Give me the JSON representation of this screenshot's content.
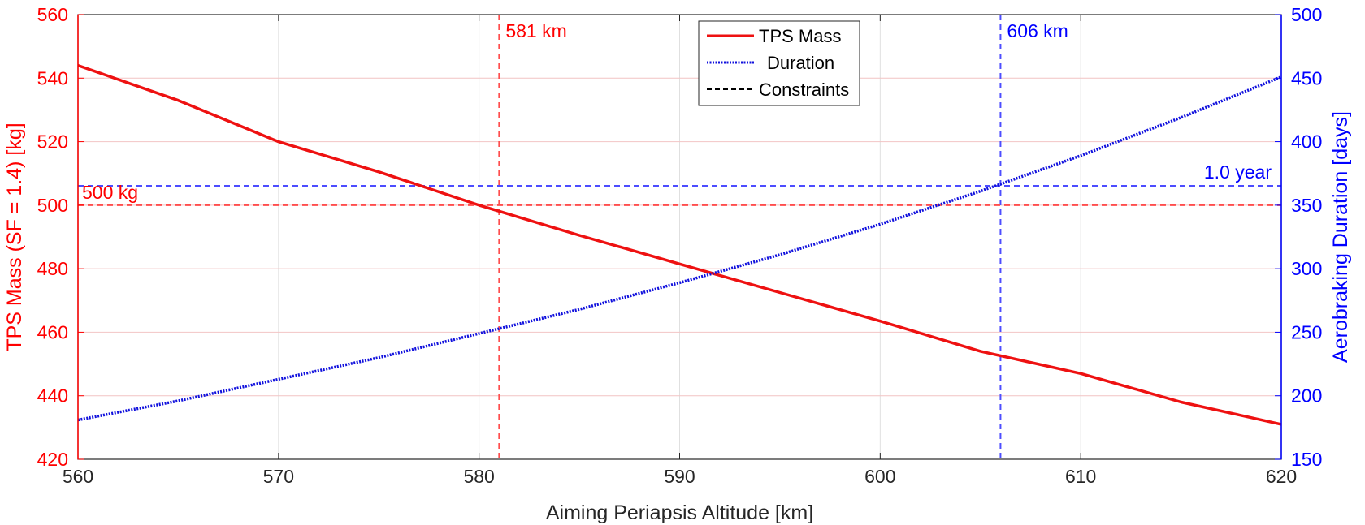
{
  "colors": {
    "left_axis": "#ff0000",
    "right_axis": "#0000ff",
    "tps_line": "#ee1111",
    "duration_line": "#1111dd",
    "constraint_left": "#ff4d4d",
    "constraint_right": "#4d4dff",
    "grid": "#e0e0e0",
    "axes": "#262626"
  },
  "chart_data": {
    "type": "line",
    "xlabel": "Aiming Periapsis Altitude [km]",
    "ylabel_left": "TPS Mass (SF = 1.4) [kg]",
    "ylabel_right": "Aerobraking Duration [days]",
    "xlim": [
      560,
      620
    ],
    "ylim_left": [
      420,
      560
    ],
    "ylim_right": [
      150,
      500
    ],
    "grid": true,
    "legend_placement": "top-center",
    "x_ticks": [
      "560",
      "570",
      "580",
      "590",
      "600",
      "610",
      "620"
    ],
    "y_left_ticks": [
      "420",
      "440",
      "460",
      "480",
      "500",
      "520",
      "540",
      "560"
    ],
    "y_right_ticks": [
      "150",
      "200",
      "250",
      "300",
      "350",
      "400",
      "450",
      "500"
    ],
    "series": [
      {
        "name": "TPS Mass",
        "axis": "left",
        "style": "solid",
        "x": [
          560,
          565,
          570,
          575,
          580,
          585,
          590,
          595,
          600,
          605,
          610,
          615,
          620
        ],
        "y": [
          544,
          533,
          520,
          510.5,
          500,
          490.5,
          481.5,
          472.5,
          463.5,
          454,
          447,
          438,
          431
        ]
      },
      {
        "name": "Duration",
        "axis": "right",
        "style": "dotted",
        "x": [
          560,
          565,
          570,
          575,
          580,
          585,
          590,
          595,
          600,
          605,
          610,
          615,
          620
        ],
        "y": [
          181,
          196,
          213,
          230,
          249,
          268,
          289,
          311,
          335,
          361,
          389,
          419,
          451
        ]
      }
    ],
    "legend": [
      "TPS Mass",
      "Duration",
      "Constraints"
    ],
    "constraints": [
      {
        "orientation": "vertical",
        "axis": "left",
        "value": 581,
        "label": "581 km"
      },
      {
        "orientation": "vertical",
        "axis": "right",
        "value": 606,
        "label": "606 km"
      },
      {
        "orientation": "horizontal",
        "axis": "left",
        "value": 500,
        "label": "500 kg"
      },
      {
        "orientation": "horizontal",
        "axis": "right",
        "value": 365.25,
        "label": "1.0 year"
      }
    ]
  }
}
